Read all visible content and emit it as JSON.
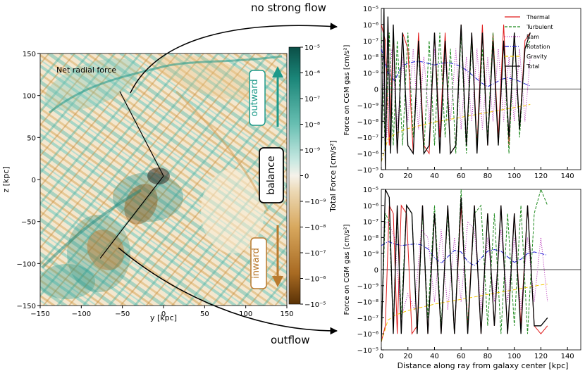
{
  "map": {
    "title": "Net radial force",
    "xlabel": "y [kpc]",
    "ylabel": "z [kpc]",
    "xticks": [
      "−150",
      "−100",
      "−50",
      "0",
      "50",
      "100",
      "150"
    ],
    "yticks": [
      "150",
      "100",
      "50",
      "0",
      "−50",
      "−100",
      "−150"
    ],
    "outward_label": "outward",
    "balance_label": "balance",
    "inward_label": "inward"
  },
  "colorbar": {
    "label": "Total Force [cm/s²]",
    "ticks": [
      "10⁻⁵",
      "10⁻⁶",
      "10⁻⁷",
      "10⁻⁸",
      "10⁻⁹",
      "0",
      "−10⁻⁹",
      "−10⁻⁸",
      "−10⁻⁷",
      "−10⁻⁶",
      "−10⁻⁵"
    ]
  },
  "annotations": {
    "top": "no strong flow",
    "bottom": "outflow"
  },
  "colors": {
    "outward": "#1d9a8a",
    "inward": "#b97a2e",
    "thermal": "#e01b1b",
    "turbulent": "#1e8a1e",
    "ram": "#b01fb0",
    "rotation": "#1b1bd6",
    "gravity": "#f2c500",
    "total": "#000000"
  },
  "chart_data": [
    {
      "type": "line",
      "panel": "top",
      "title": "no strong flow",
      "xlabel": "",
      "ylabel": "Force on CGM gas [cm/s²]",
      "xlim": [
        0,
        150
      ],
      "ylim": [
        "−10⁻⁵",
        "10⁻⁵"
      ],
      "y_scale": "symlog",
      "xticks": [
        "0",
        "20",
        "40",
        "60",
        "80",
        "100",
        "120",
        "140"
      ],
      "yticks": [
        "10⁻⁵",
        "10⁻⁶",
        "10⁻⁷",
        "10⁻⁸",
        "10⁻⁹",
        "0",
        "−10⁻⁹",
        "−10⁻⁸",
        "−10⁻⁷",
        "−10⁻⁶",
        "−10⁻⁵"
      ],
      "legend": [
        "Thermal",
        "Turbulent",
        "Ram",
        "Rotation",
        "Gravity",
        "Total"
      ],
      "legend_position": "top-right",
      "series": [
        {
          "name": "Thermal",
          "x": [
            0,
            3,
            6,
            9,
            12,
            16,
            20,
            24,
            28,
            32,
            36,
            40,
            44,
            48,
            52,
            56,
            60,
            64,
            68,
            72,
            76,
            80,
            84,
            88,
            92,
            96,
            100,
            104,
            108,
            112
          ],
          "y": [
            8,
            6,
            -7,
            7,
            -8,
            7,
            5,
            -8,
            7,
            -7,
            -8,
            7,
            -6,
            7,
            -8,
            -7,
            8,
            -7,
            7,
            -7,
            8,
            -7,
            7,
            -6,
            8,
            -7,
            7,
            -5,
            6,
            7
          ]
        },
        {
          "name": "Turbulent",
          "x": [
            0,
            3,
            6,
            9,
            12,
            16,
            20,
            24,
            28,
            32,
            36,
            40,
            44,
            48,
            52,
            56,
            60,
            64,
            68,
            72,
            76,
            80,
            84,
            88,
            92,
            96,
            100,
            104,
            108,
            112
          ],
          "y": [
            7,
            -8,
            7,
            -7,
            6,
            -7,
            7,
            -6,
            5,
            -8,
            6,
            -7,
            7,
            -6,
            5,
            -8,
            7,
            -8,
            6,
            -7,
            5,
            -6,
            7,
            -7,
            6,
            -8,
            7,
            -6,
            5,
            6
          ]
        },
        {
          "name": "Ram",
          "x": [
            0,
            4,
            8,
            12,
            16,
            20,
            24,
            28,
            32,
            36,
            40,
            44,
            48,
            52,
            56,
            60,
            64,
            68,
            72,
            76,
            80,
            84,
            88,
            92,
            96,
            100,
            104,
            108,
            112
          ],
          "y": [
            6,
            -6,
            5,
            -5,
            4,
            -4,
            5,
            -5,
            4,
            -4,
            5,
            -5,
            4,
            -4,
            5,
            -5,
            4,
            -4,
            5,
            -5,
            4,
            -4,
            5,
            -4,
            4,
            -4,
            5,
            -4,
            4
          ]
        },
        {
          "name": "Rotation",
          "x": [
            0,
            5,
            10,
            15,
            20,
            25,
            30,
            35,
            40,
            45,
            50,
            55,
            60,
            65,
            70,
            75,
            80,
            85,
            90,
            95,
            100,
            105,
            110,
            112
          ],
          "y": [
            5,
            2,
            1,
            2.8,
            3.2,
            3.4,
            3.4,
            3.2,
            3.0,
            3.2,
            3.3,
            3.1,
            2.8,
            2.2,
            1.5,
            0.8,
            0.3,
            0.7,
            1.2,
            1.4,
            1.2,
            0.9,
            0.5,
            0.4
          ]
        },
        {
          "name": "Gravity",
          "x": [
            0,
            5,
            10,
            15,
            20,
            30,
            40,
            50,
            60,
            70,
            80,
            90,
            100,
            110,
            112
          ],
          "y": [
            -9,
            -6.2,
            -5.6,
            -5.2,
            -4.9,
            -4.5,
            -4.1,
            -3.8,
            -3.5,
            -3.2,
            -2.9,
            -2.6,
            -2.3,
            -2.0,
            -1.9
          ]
        },
        {
          "name": "Total",
          "x": [
            0,
            2,
            3,
            5,
            7,
            9,
            12,
            16,
            20,
            24,
            28,
            32,
            36,
            40,
            44,
            48,
            52,
            56,
            60,
            64,
            68,
            72,
            76,
            80,
            84,
            88,
            92,
            96,
            100,
            104,
            108,
            112
          ],
          "y": [
            -9,
            10,
            -10,
            9,
            -8,
            8,
            -8,
            7,
            -7,
            -8,
            6,
            -8,
            -7,
            7,
            -8,
            6,
            -8,
            -7,
            8,
            -7,
            7,
            -8,
            7,
            -7,
            6,
            -7,
            6,
            -6,
            7,
            -5,
            5,
            7
          ]
        }
      ]
    },
    {
      "type": "line",
      "panel": "bottom",
      "title": "outflow",
      "xlabel": "Distance along ray from galaxy center [kpc]",
      "ylabel": "Force on CGM gas [cm/s²]",
      "xlim": [
        0,
        150
      ],
      "ylim": [
        "−10⁻⁵",
        "10⁻⁵"
      ],
      "y_scale": "symlog",
      "xticks": [
        "0",
        "20",
        "40",
        "60",
        "80",
        "100",
        "120",
        "140"
      ],
      "yticks": [
        "10⁻⁵",
        "10⁻⁶",
        "10⁻⁷",
        "10⁻⁸",
        "10⁻⁹",
        "0",
        "−10⁻⁹",
        "−10⁻⁸",
        "−10⁻⁷",
        "−10⁻⁶",
        "−10⁻⁵"
      ],
      "series": [
        {
          "name": "Thermal",
          "x": [
            0,
            3,
            6,
            9,
            12,
            15,
            19,
            23,
            27,
            31,
            35,
            40,
            45,
            50,
            55,
            60,
            65,
            70,
            75,
            80,
            85,
            90,
            95,
            100,
            105,
            110,
            115,
            120,
            125
          ],
          "y": [
            -9,
            -7,
            8,
            7,
            -8,
            8,
            7,
            -8,
            -7,
            8,
            -8,
            7,
            -8,
            8,
            -8,
            8,
            -7,
            8,
            -8,
            7,
            -7,
            8,
            -8,
            7,
            -7,
            8,
            -7,
            -8,
            -7
          ]
        },
        {
          "name": "Turbulent",
          "x": [
            0,
            3,
            6,
            9,
            12,
            15,
            19,
            23,
            27,
            31,
            35,
            40,
            45,
            50,
            55,
            60,
            65,
            70,
            75,
            80,
            85,
            90,
            95,
            100,
            105,
            110,
            115,
            120,
            125
          ],
          "y": [
            -8,
            7,
            6,
            -7,
            7,
            -6,
            8,
            7,
            -8,
            7,
            -6,
            8,
            -7,
            7,
            -8,
            10,
            -7,
            7,
            8,
            -7,
            7,
            -8,
            7,
            -7,
            8,
            -8,
            7,
            10,
            8
          ]
        },
        {
          "name": "Ram",
          "x": [
            0,
            5,
            10,
            15,
            20,
            25,
            30,
            35,
            40,
            45,
            50,
            55,
            60,
            65,
            70,
            75,
            80,
            85,
            90,
            95,
            100,
            105,
            110,
            115,
            120,
            125
          ],
          "y": [
            5,
            6,
            4,
            -6,
            -3,
            -5,
            5,
            4,
            -4,
            5,
            -5,
            4,
            -4,
            6,
            5,
            -5,
            4,
            -4,
            5,
            -4,
            4,
            -5,
            4,
            -4,
            4,
            -4
          ]
        },
        {
          "name": "Rotation",
          "x": [
            0,
            5,
            10,
            15,
            20,
            25,
            30,
            35,
            40,
            45,
            50,
            55,
            60,
            65,
            70,
            75,
            80,
            85,
            90,
            95,
            100,
            105,
            110,
            115,
            120,
            125
          ],
          "y": [
            3,
            3.5,
            3.2,
            3.0,
            3.1,
            3.2,
            3.1,
            2.6,
            1.5,
            0.8,
            1.6,
            2.4,
            2.2,
            1.0,
            0.5,
            1.4,
            2.3,
            2.5,
            2.3,
            1.6,
            0.9,
            1.3,
            2.0,
            2.2,
            2.0,
            1.8
          ]
        },
        {
          "name": "Gravity",
          "x": [
            0,
            5,
            10,
            20,
            30,
            40,
            50,
            60,
            70,
            80,
            90,
            100,
            110,
            120,
            125
          ],
          "y": [
            -9,
            -6.3,
            -5.7,
            -5.1,
            -4.7,
            -4.3,
            -4.0,
            -3.7,
            -3.4,
            -3.1,
            -2.8,
            -2.5,
            -2.2,
            -1.9,
            -1.8
          ]
        },
        {
          "name": "Total",
          "x": [
            0,
            3,
            6,
            9,
            12,
            15,
            19,
            23,
            27,
            31,
            35,
            40,
            45,
            50,
            55,
            60,
            65,
            70,
            75,
            80,
            85,
            90,
            95,
            100,
            105,
            110,
            115,
            120,
            125
          ],
          "y": [
            -9,
            10,
            9,
            -8,
            8,
            -8,
            8,
            7,
            -8,
            8,
            -8,
            7,
            -8,
            8,
            -8,
            9,
            -8,
            8,
            -8,
            7,
            -7,
            8,
            -8,
            7,
            -8,
            8,
            -7,
            -7,
            -6
          ]
        }
      ]
    }
  ]
}
